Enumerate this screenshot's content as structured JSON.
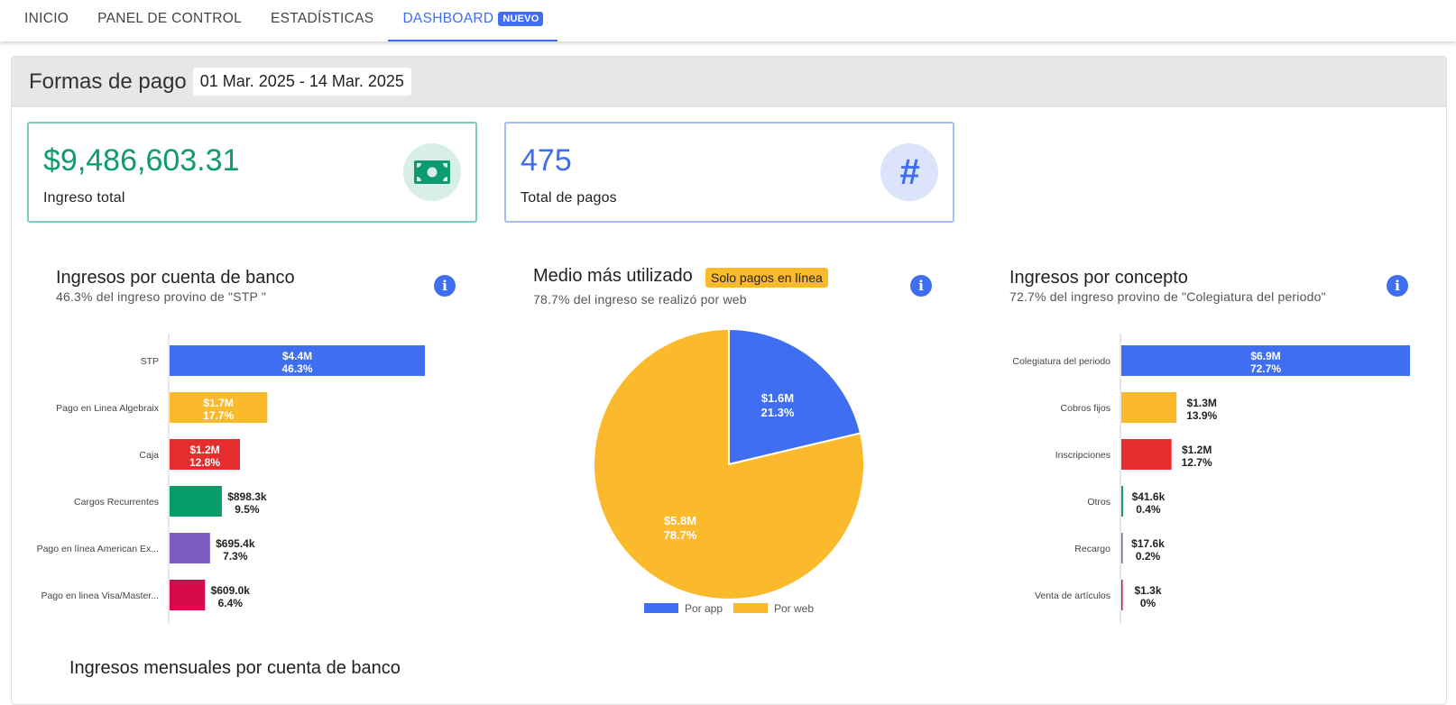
{
  "nav": {
    "tabs": [
      {
        "label": "INICIO"
      },
      {
        "label": "PANEL DE CONTROL"
      },
      {
        "label": "ESTADÍSTICAS"
      },
      {
        "label": "DASHBOARD",
        "badge": "NUEVO"
      }
    ],
    "active_tab": "DASHBOARD"
  },
  "panel": {
    "title": "Formas de pago",
    "date_range": "01 Mar. 2025 - 14 Mar. 2025"
  },
  "kpis": [
    {
      "value": "$9,486,603.31",
      "label": "Ingreso total",
      "icon": "money-bill-icon",
      "color": "#0e9b6f"
    },
    {
      "value": "475",
      "label": "Total de pagos",
      "icon": "hash-icon",
      "symbol": "#",
      "color": "#3f6ef0"
    }
  ],
  "sections": {
    "bank": {
      "title": "Ingresos por cuenta de banco",
      "subtitle": "46.3% del ingreso provino de \"STP \""
    },
    "medium": {
      "title": "Medio más utilizado",
      "badge": "Solo pagos en línea",
      "subtitle": "78.7% del ingreso se realizó por web"
    },
    "concept": {
      "title": "Ingresos por concepto",
      "subtitle": "72.7% del ingreso provino de \"Colegiatura del periodo\""
    },
    "monthly": {
      "title": "Ingresos mensuales por cuenta de banco"
    }
  },
  "chart_data": [
    {
      "type": "bar",
      "orientation": "horizontal",
      "categories": [
        "STP",
        "Pago en Linea Algebraix",
        "Caja",
        "Cargos Recurrentes",
        "Pago en línea American Ex...",
        "Pago en linea Visa/Master..."
      ],
      "values": [
        4.39,
        1.68,
        1.21,
        0.8983,
        0.6954,
        0.609
      ],
      "value_labels": [
        "$4.4M",
        "$1.7M",
        "$1.2M",
        "$898.3k",
        "$695.4k",
        "$609.0k"
      ],
      "percent_labels": [
        "46.3%",
        "17.7%",
        "12.8%",
        "9.5%",
        "7.3%",
        "6.4%"
      ],
      "colors": [
        "#3f6ef0",
        "#fbba2c",
        "#e52d2d",
        "#079b6b",
        "#7d5bbe",
        "#d70a4b"
      ],
      "unit": "millions"
    },
    {
      "type": "pie",
      "categories": [
        "Por app",
        "Por web"
      ],
      "values": [
        21.3,
        78.7
      ],
      "value_labels": [
        "$1.6M",
        "$5.8M"
      ],
      "percent_labels": [
        "21.3%",
        "78.7%"
      ],
      "colors": [
        "#3f6ef0",
        "#fbba2c"
      ],
      "legend": "bottom"
    },
    {
      "type": "bar",
      "orientation": "horizontal",
      "categories": [
        "Colegiatura del periodo",
        "Cobros fijos",
        "Inscripciones",
        "Otros",
        "Recargo",
        "Venta de artículos"
      ],
      "values": [
        6.9,
        1.32,
        1.2,
        0.0416,
        0.0176,
        0.0013
      ],
      "value_labels": [
        "$6.9M",
        "$1.3M",
        "$1.2M",
        "$41.6k",
        "$17.6k",
        "$1.3k"
      ],
      "percent_labels": [
        "72.7%",
        "13.9%",
        "12.7%",
        "0.4%",
        "0.2%",
        "0%"
      ],
      "colors": [
        "#3f6ef0",
        "#fbba2c",
        "#e52d2d",
        "#079b6b",
        "#7d5bbe",
        "#d70a4b"
      ],
      "unit": "millions"
    }
  ]
}
